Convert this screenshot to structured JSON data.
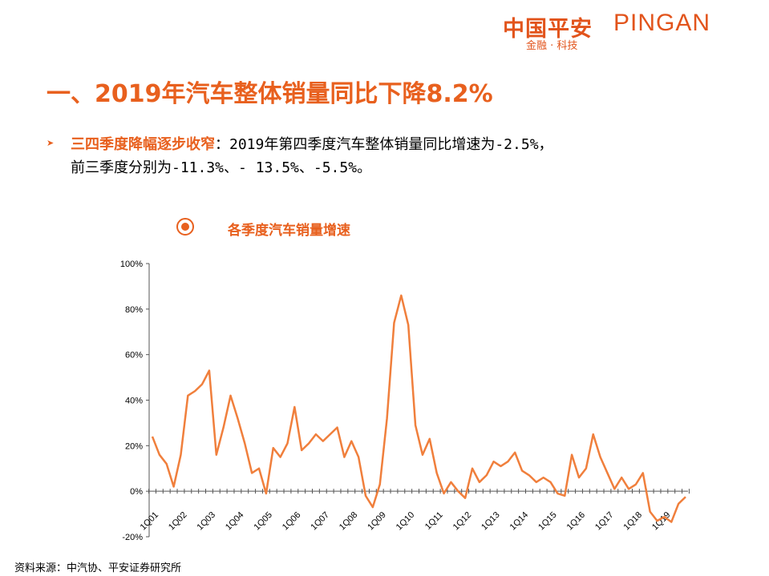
{
  "logo": {
    "cn": "中国平安",
    "en": "PINGAN",
    "sub": "金融 · 科技"
  },
  "title": "一、2019年汽车整体销量同比下降8.2%",
  "bullet": {
    "icon": "arrow-right-icon",
    "highlight": "三四季度降幅逐步收窄",
    "text1": "：2019年第四季度汽车整体销量同比增速为-2.5%，",
    "text2": "前三季度分别为-11.3%、- 13.5%、-5.5%。"
  },
  "source": "资料来源：中汽协、平安证券研究所",
  "colors": {
    "accent": "#e8601e",
    "line": "#f07f3c"
  },
  "chart_data": {
    "type": "line",
    "title": "各季度汽车销量增速",
    "ylim": [
      -20,
      100
    ],
    "yticks": [
      "100%",
      "80%",
      "60%",
      "40%",
      "20%",
      "0%",
      "-20%"
    ],
    "ytick_values": [
      100,
      80,
      60,
      40,
      20,
      0,
      -20
    ],
    "xtick_labels": [
      "1Q01",
      "1Q02",
      "1Q03",
      "1Q04",
      "1Q05",
      "1Q06",
      "1Q07",
      "1Q08",
      "1Q09",
      "1Q10",
      "1Q11",
      "1Q12",
      "1Q13",
      "1Q14",
      "1Q15",
      "1Q16",
      "1Q17",
      "1Q18",
      "1Q19"
    ],
    "unit": "%",
    "grid": false,
    "values": [
      24,
      16,
      12,
      2,
      16,
      42,
      44,
      47,
      53,
      16,
      28,
      42,
      32,
      21,
      8,
      10,
      -1,
      19,
      15,
      21,
      37,
      18,
      21,
      25,
      22,
      25,
      28,
      15,
      22,
      15,
      -2,
      -7,
      3,
      32,
      74,
      86,
      73,
      29,
      16,
      23,
      8,
      -1,
      4,
      0,
      -3,
      10,
      4,
      7,
      13,
      11,
      13,
      17,
      9,
      7,
      4,
      6,
      4,
      -1,
      -2,
      16,
      6,
      10,
      25,
      15,
      8,
      1,
      6,
      1,
      3,
      8,
      -9,
      -13,
      -11.3,
      -13.5,
      -5.5,
      -2.5
    ]
  }
}
